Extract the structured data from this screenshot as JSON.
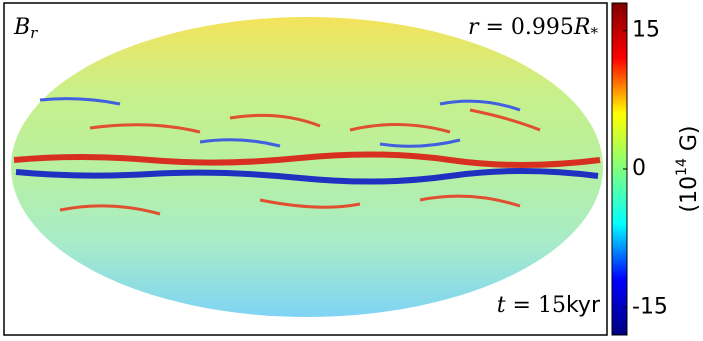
{
  "chart_data": {
    "type": "map",
    "panel_label": {
      "main": "B",
      "sub": "r"
    },
    "radius_label": {
      "prefix": "r",
      "eq": " = 0.995",
      "main": "R",
      "sub": "*"
    },
    "time_label": {
      "prefix": "t",
      "eq": " = 15",
      "unit": "kyr"
    },
    "colorbar": {
      "label": {
        "pre": "(10",
        "sup": "14",
        "post": " G)"
      },
      "clim": [
        -18,
        18
      ],
      "ticks": [
        15,
        0,
        -15
      ],
      "colors": [
        "#7f0000",
        "#ff0000",
        "#ffff00",
        "#7fff7f",
        "#00ffff",
        "#0000ff",
        "#00007f"
      ]
    }
  }
}
